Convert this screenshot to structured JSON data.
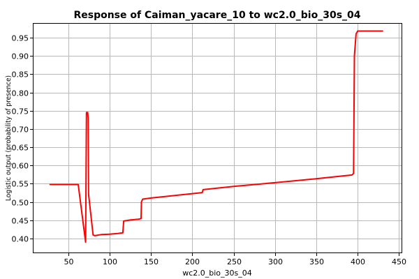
{
  "chart_data": {
    "type": "line",
    "title": "Response of Caiman_yacare_10 to wc2.0_bio_30s_04",
    "xlabel": "wc2.0_bio_30s_04",
    "ylabel": "Logistic output (probability of presence)",
    "xlim": [
      8,
      453
    ],
    "ylim": [
      0.362,
      0.988
    ],
    "x_ticks": [
      50,
      100,
      150,
      200,
      250,
      300,
      350,
      400,
      450
    ],
    "y_ticks": [
      0.4,
      0.45,
      0.5,
      0.55,
      0.6,
      0.65,
      0.7,
      0.75,
      0.8,
      0.85,
      0.9,
      0.95
    ],
    "grid": true,
    "series": [
      {
        "color": "#ff0000",
        "points": [
          [
            28,
            0.548
          ],
          [
            62,
            0.548
          ],
          [
            71,
            0.39
          ],
          [
            72,
            0.745
          ],
          [
            73.5,
            0.745
          ],
          [
            74,
            0.73
          ],
          [
            74.5,
            0.522
          ],
          [
            80,
            0.41
          ],
          [
            82,
            0.408
          ],
          [
            90,
            0.411
          ],
          [
            100,
            0.412
          ],
          [
            110,
            0.414
          ],
          [
            116,
            0.416
          ],
          [
            117,
            0.448
          ],
          [
            125,
            0.451
          ],
          [
            135,
            0.453
          ],
          [
            138,
            0.455
          ],
          [
            138.5,
            0.5
          ],
          [
            140,
            0.508
          ],
          [
            150,
            0.511
          ],
          [
            175,
            0.517
          ],
          [
            200,
            0.523
          ],
          [
            212,
            0.526
          ],
          [
            213,
            0.534
          ],
          [
            250,
            0.543
          ],
          [
            300,
            0.553
          ],
          [
            350,
            0.564
          ],
          [
            393,
            0.574
          ],
          [
            395,
            0.578
          ],
          [
            396,
            0.9
          ],
          [
            398,
            0.96
          ],
          [
            400,
            0.968
          ],
          [
            430,
            0.968
          ]
        ]
      }
    ]
  }
}
